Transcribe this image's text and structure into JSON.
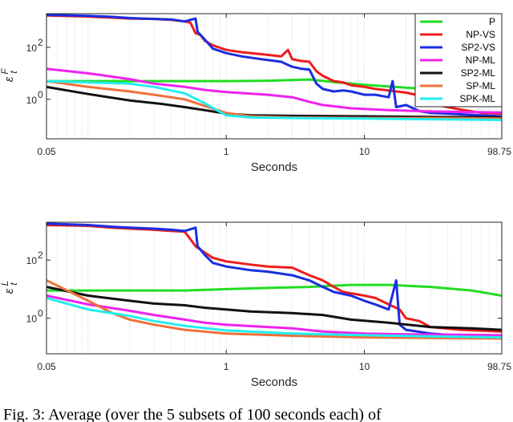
{
  "caption": "Fig. 3: Average (over the 5 subsets of 100 seconds each) of",
  "chart_data": [
    {
      "type": "line",
      "xscale": "log",
      "yscale": "log",
      "xlim": [
        0.05,
        98.75
      ],
      "ylim": [
        0.03,
        2000
      ],
      "xticks": [
        "0.05",
        "1",
        "10",
        "98.75"
      ],
      "yticks": [
        {
          "label": "10",
          "exp": "0",
          "value": 1
        },
        {
          "label": "10",
          "exp": "2",
          "value": 100
        }
      ],
      "xlabel": "Seconds",
      "ylabel": "ε",
      "ylabel_sub": "t",
      "ylabel_sup": "F",
      "grid": "x-minor",
      "legend": "top-right",
      "series": [
        {
          "name": "P",
          "color": "#22dd22",
          "points": [
            [
              0.05,
              5
            ],
            [
              0.2,
              5
            ],
            [
              1,
              5
            ],
            [
              2,
              5.2
            ],
            [
              4,
              5.8
            ],
            [
              6,
              4.6
            ],
            [
              10,
              3.6
            ],
            [
              20,
              2.8
            ],
            [
              40,
              2.2
            ],
            [
              70,
              1.7
            ],
            [
              98.75,
              1.4
            ]
          ]
        },
        {
          "name": "NP-VS",
          "color": "#ee1c1c",
          "points": [
            [
              0.05,
              1700
            ],
            [
              0.1,
              1550
            ],
            [
              0.15,
              1400
            ],
            [
              0.2,
              1300
            ],
            [
              0.3,
              1250
            ],
            [
              0.4,
              1150
            ],
            [
              0.5,
              1000
            ],
            [
              0.55,
              900
            ],
            [
              0.6,
              350
            ],
            [
              0.65,
              300
            ],
            [
              0.7,
              180
            ],
            [
              0.8,
              120
            ],
            [
              1,
              80
            ],
            [
              1.3,
              65
            ],
            [
              1.8,
              55
            ],
            [
              2.5,
              45
            ],
            [
              2.8,
              80
            ],
            [
              3,
              35
            ],
            [
              3.5,
              30
            ],
            [
              4,
              28
            ],
            [
              4.5,
              12
            ],
            [
              5,
              8
            ],
            [
              6,
              5
            ],
            [
              7,
              4.5
            ],
            [
              8,
              3.5
            ],
            [
              10,
              3
            ],
            [
              12,
              2.5
            ],
            [
              15,
              2.2
            ],
            [
              20,
              1.8
            ],
            [
              25,
              1.4
            ],
            [
              30,
              0.7
            ],
            [
              40,
              0.5
            ],
            [
              50,
              0.4
            ],
            [
              70,
              0.3
            ],
            [
              98.75,
              0.28
            ]
          ]
        },
        {
          "name": "SP2-VS",
          "color": "#1a2ee0",
          "points": [
            [
              0.05,
              1800
            ],
            [
              0.1,
              1650
            ],
            [
              0.15,
              1500
            ],
            [
              0.2,
              1350
            ],
            [
              0.3,
              1250
            ],
            [
              0.4,
              1200
            ],
            [
              0.5,
              1000
            ],
            [
              0.6,
              1300
            ],
            [
              0.62,
              400
            ],
            [
              0.7,
              200
            ],
            [
              0.8,
              90
            ],
            [
              1,
              60
            ],
            [
              1.3,
              45
            ],
            [
              1.8,
              35
            ],
            [
              2.5,
              28
            ],
            [
              3,
              18
            ],
            [
              3.5,
              15
            ],
            [
              4,
              14
            ],
            [
              4.5,
              4
            ],
            [
              5,
              2.5
            ],
            [
              6,
              2
            ],
            [
              7,
              2.2
            ],
            [
              8,
              2
            ],
            [
              10,
              1.5
            ],
            [
              12,
              1.5
            ],
            [
              15,
              1.2
            ],
            [
              16,
              5
            ],
            [
              17,
              0.5
            ],
            [
              20,
              0.6
            ],
            [
              25,
              0.35
            ],
            [
              30,
              0.3
            ],
            [
              40,
              0.28
            ],
            [
              60,
              0.25
            ],
            [
              98.75,
              0.22
            ]
          ]
        },
        {
          "name": "NP-ML",
          "color": "#ee22ee",
          "points": [
            [
              0.05,
              15
            ],
            [
              0.1,
              10
            ],
            [
              0.2,
              6
            ],
            [
              0.3,
              4
            ],
            [
              0.5,
              3
            ],
            [
              0.7,
              2.3
            ],
            [
              1,
              1.9
            ],
            [
              2,
              1.5
            ],
            [
              3,
              1.2
            ],
            [
              4,
              0.8
            ],
            [
              5,
              0.6
            ],
            [
              8,
              0.45
            ],
            [
              15,
              0.38
            ],
            [
              30,
              0.34
            ],
            [
              60,
              0.32
            ],
            [
              98.75,
              0.31
            ]
          ]
        },
        {
          "name": "SP2-ML",
          "color": "#111111",
          "points": [
            [
              0.05,
              3
            ],
            [
              0.1,
              1.6
            ],
            [
              0.2,
              0.9
            ],
            [
              0.35,
              0.65
            ],
            [
              0.5,
              0.5
            ],
            [
              0.7,
              0.38
            ],
            [
              1,
              0.28
            ],
            [
              1.5,
              0.24
            ],
            [
              3,
              0.23
            ],
            [
              10,
              0.22
            ],
            [
              30,
              0.21
            ],
            [
              98.75,
              0.2
            ]
          ]
        },
        {
          "name": "SP-ML",
          "color": "#f0703a",
          "points": [
            [
              0.05,
              5
            ],
            [
              0.1,
              3
            ],
            [
              0.2,
              2
            ],
            [
              0.3,
              1.5
            ],
            [
              0.5,
              1
            ],
            [
              0.7,
              0.55
            ],
            [
              1,
              0.3
            ],
            [
              1.5,
              0.22
            ],
            [
              3,
              0.2
            ],
            [
              10,
              0.19
            ],
            [
              30,
              0.19
            ],
            [
              98.75,
              0.18
            ]
          ]
        },
        {
          "name": "SPK-ML",
          "color": "#22eeee",
          "points": [
            [
              0.05,
              5
            ],
            [
              0.1,
              4.5
            ],
            [
              0.2,
              4
            ],
            [
              0.3,
              3
            ],
            [
              0.5,
              1.7
            ],
            [
              0.7,
              0.7
            ],
            [
              1,
              0.24
            ],
            [
              1.5,
              0.2
            ],
            [
              3,
              0.19
            ],
            [
              10,
              0.18
            ],
            [
              30,
              0.17
            ],
            [
              98.75,
              0.16
            ]
          ]
        }
      ]
    },
    {
      "type": "line",
      "xscale": "log",
      "yscale": "log",
      "xlim": [
        0.05,
        98.75
      ],
      "ylim": [
        0.06,
        2000
      ],
      "xticks": [
        "0.05",
        "1",
        "10",
        "98.75"
      ],
      "yticks": [
        {
          "label": "10",
          "exp": "0",
          "value": 1
        },
        {
          "label": "10",
          "exp": "2",
          "value": 100
        }
      ],
      "xlabel": "Seconds",
      "ylabel": "ε",
      "ylabel_sub": "t",
      "ylabel_sup": "L",
      "grid": "x-minor",
      "series": [
        {
          "name": "P",
          "color": "#22dd22",
          "points": [
            [
              0.05,
              9
            ],
            [
              0.2,
              9
            ],
            [
              0.5,
              9
            ],
            [
              1,
              10
            ],
            [
              2,
              11
            ],
            [
              4,
              12
            ],
            [
              8,
              14
            ],
            [
              15,
              14
            ],
            [
              30,
              12
            ],
            [
              60,
              9
            ],
            [
              98.75,
              6
            ]
          ]
        },
        {
          "name": "NP-VS",
          "color": "#ee1c1c",
          "points": [
            [
              0.05,
              1600
            ],
            [
              0.1,
              1500
            ],
            [
              0.15,
              1300
            ],
            [
              0.2,
              1200
            ],
            [
              0.3,
              1100
            ],
            [
              0.4,
              1000
            ],
            [
              0.5,
              950
            ],
            [
              0.6,
              300
            ],
            [
              0.7,
              180
            ],
            [
              0.8,
              120
            ],
            [
              1,
              90
            ],
            [
              1.5,
              70
            ],
            [
              2,
              60
            ],
            [
              3,
              55
            ],
            [
              4,
              30
            ],
            [
              5,
              20
            ],
            [
              6,
              12
            ],
            [
              7,
              8
            ],
            [
              10,
              6
            ],
            [
              12,
              5
            ],
            [
              15,
              3
            ],
            [
              18,
              2
            ],
            [
              20,
              1
            ],
            [
              25,
              0.8
            ],
            [
              30,
              0.5
            ],
            [
              50,
              0.4
            ],
            [
              98.75,
              0.35
            ]
          ]
        },
        {
          "name": "SP2-VS",
          "color": "#1a2ee0",
          "points": [
            [
              0.05,
              1800
            ],
            [
              0.1,
              1600
            ],
            [
              0.15,
              1400
            ],
            [
              0.2,
              1300
            ],
            [
              0.3,
              1200
            ],
            [
              0.4,
              1100
            ],
            [
              0.5,
              1000
            ],
            [
              0.6,
              1300
            ],
            [
              0.62,
              300
            ],
            [
              0.7,
              150
            ],
            [
              0.8,
              80
            ],
            [
              1,
              60
            ],
            [
              1.5,
              45
            ],
            [
              2,
              40
            ],
            [
              3,
              30
            ],
            [
              4,
              20
            ],
            [
              5,
              12
            ],
            [
              6,
              8
            ],
            [
              8,
              6
            ],
            [
              10,
              4
            ],
            [
              12,
              3
            ],
            [
              15,
              2
            ],
            [
              17,
              20
            ],
            [
              18,
              0.6
            ],
            [
              20,
              0.4
            ],
            [
              30,
              0.3
            ],
            [
              50,
              0.25
            ],
            [
              98.75,
              0.22
            ]
          ]
        },
        {
          "name": "NP-ML",
          "color": "#ee22ee",
          "points": [
            [
              0.05,
              6
            ],
            [
              0.1,
              3
            ],
            [
              0.2,
              1.8
            ],
            [
              0.3,
              1.3
            ],
            [
              0.5,
              0.9
            ],
            [
              0.7,
              0.7
            ],
            [
              1,
              0.6
            ],
            [
              2,
              0.5
            ],
            [
              3,
              0.45
            ],
            [
              5,
              0.35
            ],
            [
              10,
              0.3
            ],
            [
              20,
              0.28
            ],
            [
              50,
              0.27
            ],
            [
              98.75,
              0.26
            ]
          ]
        },
        {
          "name": "SP2-ML",
          "color": "#111111",
          "points": [
            [
              0.05,
              12
            ],
            [
              0.1,
              6
            ],
            [
              0.2,
              4
            ],
            [
              0.3,
              3.2
            ],
            [
              0.5,
              2.8
            ],
            [
              0.7,
              2.3
            ],
            [
              1,
              2
            ],
            [
              1.5,
              1.7
            ],
            [
              3,
              1.5
            ],
            [
              5,
              1.3
            ],
            [
              8,
              0.9
            ],
            [
              15,
              0.7
            ],
            [
              30,
              0.5
            ],
            [
              60,
              0.45
            ],
            [
              98.75,
              0.4
            ]
          ]
        },
        {
          "name": "SP-ML",
          "color": "#f0703a",
          "points": [
            [
              0.05,
              20
            ],
            [
              0.1,
              4
            ],
            [
              0.15,
              1.5
            ],
            [
              0.2,
              0.9
            ],
            [
              0.3,
              0.6
            ],
            [
              0.5,
              0.4
            ],
            [
              1,
              0.3
            ],
            [
              3,
              0.25
            ],
            [
              10,
              0.22
            ],
            [
              30,
              0.21
            ],
            [
              98.75,
              0.2
            ]
          ]
        },
        {
          "name": "SPK-ML",
          "color": "#22eeee",
          "points": [
            [
              0.05,
              5
            ],
            [
              0.1,
              2
            ],
            [
              0.2,
              1.2
            ],
            [
              0.3,
              0.8
            ],
            [
              0.5,
              0.55
            ],
            [
              1,
              0.38
            ],
            [
              3,
              0.3
            ],
            [
              10,
              0.26
            ],
            [
              30,
              0.24
            ],
            [
              98.75,
              0.22
            ]
          ]
        }
      ]
    }
  ]
}
